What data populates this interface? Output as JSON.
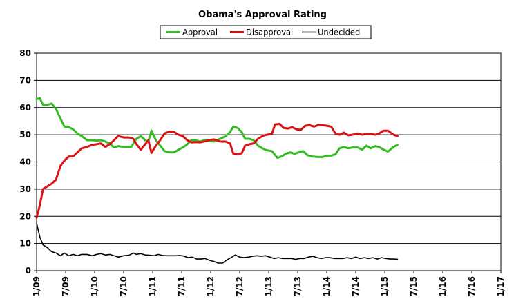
{
  "chart_data": {
    "type": "line",
    "title": "Obama's Approval Rating",
    "xlabel": "",
    "ylabel": "",
    "ylim": [
      0,
      80
    ],
    "yticks": [
      0,
      10,
      20,
      30,
      40,
      50,
      60,
      70,
      80
    ],
    "xticks": [
      "1/09",
      "7/09",
      "1/10",
      "7/10",
      "1/11",
      "7/11",
      "1/12",
      "7/12",
      "1/13",
      "7/13",
      "1/14",
      "7/14",
      "1/15",
      "7/15",
      "1/16",
      "7/16",
      "1/17"
    ],
    "xlim": [
      0,
      16
    ],
    "grid": "horizontal",
    "legend_position": "top",
    "series": [
      {
        "name": "Approval",
        "color": "#33bb22",
        "points": [
          [
            0.0,
            63.0
          ],
          [
            0.11,
            63.5
          ],
          [
            0.22,
            61.0
          ],
          [
            0.37,
            61.0
          ],
          [
            0.52,
            61.5
          ],
          [
            0.67,
            59.5
          ],
          [
            0.82,
            56.0
          ],
          [
            0.96,
            53.0
          ],
          [
            1.11,
            52.8
          ],
          [
            1.26,
            52.0
          ],
          [
            1.41,
            50.5
          ],
          [
            1.55,
            49.5
          ],
          [
            1.74,
            48.0
          ],
          [
            1.92,
            48.0
          ],
          [
            2.07,
            47.8
          ],
          [
            2.22,
            48.0
          ],
          [
            2.37,
            47.5
          ],
          [
            2.52,
            46.8
          ],
          [
            2.67,
            45.3
          ],
          [
            2.81,
            45.8
          ],
          [
            3.0,
            45.5
          ],
          [
            3.26,
            45.5
          ],
          [
            3.44,
            48.5
          ],
          [
            3.59,
            49.5
          ],
          [
            3.74,
            48.0
          ],
          [
            3.85,
            47.5
          ],
          [
            3.96,
            51.5
          ],
          [
            4.11,
            48.0
          ],
          [
            4.26,
            46.0
          ],
          [
            4.41,
            44.0
          ],
          [
            4.59,
            43.5
          ],
          [
            4.74,
            43.5
          ],
          [
            4.89,
            44.5
          ],
          [
            5.04,
            45.3
          ],
          [
            5.19,
            46.5
          ],
          [
            5.33,
            48.0
          ],
          [
            5.48,
            48.0
          ],
          [
            5.63,
            47.5
          ],
          [
            5.78,
            48.0
          ],
          [
            5.93,
            47.8
          ],
          [
            6.11,
            47.5
          ],
          [
            6.33,
            48.5
          ],
          [
            6.52,
            49.5
          ],
          [
            6.67,
            51.0
          ],
          [
            6.78,
            53.0
          ],
          [
            6.93,
            52.5
          ],
          [
            7.07,
            51.0
          ],
          [
            7.19,
            48.5
          ],
          [
            7.33,
            48.5
          ],
          [
            7.48,
            48.0
          ],
          [
            7.63,
            46.0
          ],
          [
            7.78,
            45.0
          ],
          [
            7.93,
            44.3
          ],
          [
            8.11,
            44.0
          ],
          [
            8.3,
            41.5
          ],
          [
            8.44,
            42.0
          ],
          [
            8.59,
            43.0
          ],
          [
            8.74,
            43.5
          ],
          [
            8.89,
            43.0
          ],
          [
            9.04,
            43.5
          ],
          [
            9.19,
            44.0
          ],
          [
            9.33,
            42.5
          ],
          [
            9.48,
            42.0
          ],
          [
            9.7,
            41.8
          ],
          [
            9.85,
            41.8
          ],
          [
            10.0,
            42.3
          ],
          [
            10.15,
            42.3
          ],
          [
            10.3,
            42.8
          ],
          [
            10.44,
            45.0
          ],
          [
            10.59,
            45.5
          ],
          [
            10.74,
            45.0
          ],
          [
            10.89,
            45.3
          ],
          [
            11.07,
            45.3
          ],
          [
            11.22,
            44.5
          ],
          [
            11.37,
            46.0
          ],
          [
            11.52,
            45.0
          ],
          [
            11.67,
            45.8
          ],
          [
            11.81,
            45.5
          ],
          [
            11.96,
            44.5
          ],
          [
            12.11,
            43.8
          ],
          [
            12.3,
            45.5
          ],
          [
            12.44,
            46.3
          ]
        ]
      },
      {
        "name": "Disapproval",
        "color": "#dd1111",
        "points": [
          [
            0.0,
            19.5
          ],
          [
            0.11,
            24.0
          ],
          [
            0.22,
            30.0
          ],
          [
            0.37,
            31.0
          ],
          [
            0.52,
            32.0
          ],
          [
            0.67,
            33.5
          ],
          [
            0.82,
            38.5
          ],
          [
            0.96,
            40.5
          ],
          [
            1.11,
            42.0
          ],
          [
            1.26,
            42.0
          ],
          [
            1.41,
            43.5
          ],
          [
            1.55,
            45.0
          ],
          [
            1.74,
            45.5
          ],
          [
            1.92,
            46.3
          ],
          [
            2.07,
            46.5
          ],
          [
            2.22,
            46.8
          ],
          [
            2.37,
            45.5
          ],
          [
            2.52,
            46.5
          ],
          [
            2.67,
            48.0
          ],
          [
            2.81,
            49.5
          ],
          [
            3.0,
            49.0
          ],
          [
            3.19,
            49.0
          ],
          [
            3.33,
            48.5
          ],
          [
            3.44,
            46.5
          ],
          [
            3.59,
            44.5
          ],
          [
            3.74,
            46.5
          ],
          [
            3.85,
            48.0
          ],
          [
            3.96,
            43.3
          ],
          [
            4.11,
            46.0
          ],
          [
            4.26,
            48.0
          ],
          [
            4.41,
            50.5
          ],
          [
            4.59,
            51.2
          ],
          [
            4.74,
            51.0
          ],
          [
            4.89,
            50.0
          ],
          [
            5.04,
            49.5
          ],
          [
            5.19,
            48.0
          ],
          [
            5.33,
            47.2
          ],
          [
            5.48,
            47.3
          ],
          [
            5.63,
            47.2
          ],
          [
            5.78,
            47.5
          ],
          [
            5.93,
            48.0
          ],
          [
            6.11,
            48.3
          ],
          [
            6.33,
            47.5
          ],
          [
            6.52,
            47.5
          ],
          [
            6.67,
            46.8
          ],
          [
            6.78,
            43.0
          ],
          [
            6.93,
            42.8
          ],
          [
            7.07,
            43.2
          ],
          [
            7.19,
            46.0
          ],
          [
            7.33,
            46.5
          ],
          [
            7.48,
            46.8
          ],
          [
            7.63,
            48.5
          ],
          [
            7.78,
            49.5
          ],
          [
            7.93,
            50.0
          ],
          [
            8.11,
            50.3
          ],
          [
            8.22,
            53.8
          ],
          [
            8.37,
            54.0
          ],
          [
            8.52,
            52.5
          ],
          [
            8.67,
            52.3
          ],
          [
            8.81,
            52.8
          ],
          [
            8.96,
            52.0
          ],
          [
            9.11,
            51.8
          ],
          [
            9.26,
            53.3
          ],
          [
            9.41,
            53.5
          ],
          [
            9.56,
            53.0
          ],
          [
            9.7,
            53.5
          ],
          [
            9.85,
            53.5
          ],
          [
            10.0,
            53.3
          ],
          [
            10.15,
            53.0
          ],
          [
            10.3,
            50.5
          ],
          [
            10.44,
            50.0
          ],
          [
            10.59,
            50.8
          ],
          [
            10.74,
            49.8
          ],
          [
            10.89,
            50.0
          ],
          [
            11.07,
            50.5
          ],
          [
            11.22,
            50.0
          ],
          [
            11.37,
            50.3
          ],
          [
            11.52,
            50.3
          ],
          [
            11.67,
            50.0
          ],
          [
            11.81,
            50.5
          ],
          [
            11.96,
            51.5
          ],
          [
            12.11,
            51.5
          ],
          [
            12.3,
            50.0
          ],
          [
            12.44,
            49.5
          ]
        ]
      },
      {
        "name": "Undecided",
        "color": "#000000",
        "points": [
          [
            0.0,
            17.5
          ],
          [
            0.11,
            12.5
          ],
          [
            0.22,
            9.5
          ],
          [
            0.37,
            8.5
          ],
          [
            0.52,
            7.0
          ],
          [
            0.67,
            6.5
          ],
          [
            0.82,
            5.5
          ],
          [
            0.96,
            6.5
          ],
          [
            1.11,
            5.5
          ],
          [
            1.26,
            6.0
          ],
          [
            1.41,
            5.5
          ],
          [
            1.55,
            6.0
          ],
          [
            1.74,
            6.0
          ],
          [
            1.92,
            5.5
          ],
          [
            2.07,
            6.0
          ],
          [
            2.22,
            6.3
          ],
          [
            2.37,
            5.8
          ],
          [
            2.52,
            6.0
          ],
          [
            2.67,
            5.5
          ],
          [
            2.81,
            5.0
          ],
          [
            3.0,
            5.5
          ],
          [
            3.19,
            5.7
          ],
          [
            3.33,
            6.5
          ],
          [
            3.44,
            6.0
          ],
          [
            3.59,
            6.3
          ],
          [
            3.74,
            5.8
          ],
          [
            3.89,
            5.7
          ],
          [
            4.04,
            5.5
          ],
          [
            4.19,
            6.0
          ],
          [
            4.33,
            5.6
          ],
          [
            4.48,
            5.5
          ],
          [
            4.63,
            5.5
          ],
          [
            4.78,
            5.5
          ],
          [
            4.93,
            5.6
          ],
          [
            5.07,
            5.4
          ],
          [
            5.22,
            4.8
          ],
          [
            5.37,
            5.0
          ],
          [
            5.52,
            4.3
          ],
          [
            5.67,
            4.3
          ],
          [
            5.81,
            4.5
          ],
          [
            5.96,
            3.8
          ],
          [
            6.11,
            3.4
          ],
          [
            6.26,
            2.8
          ],
          [
            6.41,
            2.8
          ],
          [
            6.56,
            4.0
          ],
          [
            6.7,
            4.8
          ],
          [
            6.85,
            5.8
          ],
          [
            7.0,
            5.0
          ],
          [
            7.15,
            4.8
          ],
          [
            7.3,
            5.0
          ],
          [
            7.44,
            5.3
          ],
          [
            7.59,
            5.5
          ],
          [
            7.74,
            5.3
          ],
          [
            7.89,
            5.5
          ],
          [
            8.04,
            5.0
          ],
          [
            8.19,
            4.5
          ],
          [
            8.33,
            4.8
          ],
          [
            8.48,
            4.5
          ],
          [
            8.63,
            4.5
          ],
          [
            8.78,
            4.5
          ],
          [
            8.93,
            4.2
          ],
          [
            9.07,
            4.5
          ],
          [
            9.22,
            4.5
          ],
          [
            9.37,
            5.0
          ],
          [
            9.52,
            5.3
          ],
          [
            9.67,
            4.8
          ],
          [
            9.81,
            4.5
          ],
          [
            9.96,
            4.8
          ],
          [
            10.11,
            4.8
          ],
          [
            10.26,
            4.5
          ],
          [
            10.41,
            4.5
          ],
          [
            10.56,
            4.5
          ],
          [
            10.7,
            4.8
          ],
          [
            10.85,
            4.5
          ],
          [
            11.0,
            5.0
          ],
          [
            11.15,
            4.5
          ],
          [
            11.3,
            4.8
          ],
          [
            11.44,
            4.5
          ],
          [
            11.59,
            4.8
          ],
          [
            11.74,
            4.3
          ],
          [
            11.89,
            4.8
          ],
          [
            12.04,
            4.5
          ],
          [
            12.19,
            4.3
          ],
          [
            12.3,
            4.3
          ],
          [
            12.44,
            4.2
          ]
        ]
      }
    ]
  }
}
